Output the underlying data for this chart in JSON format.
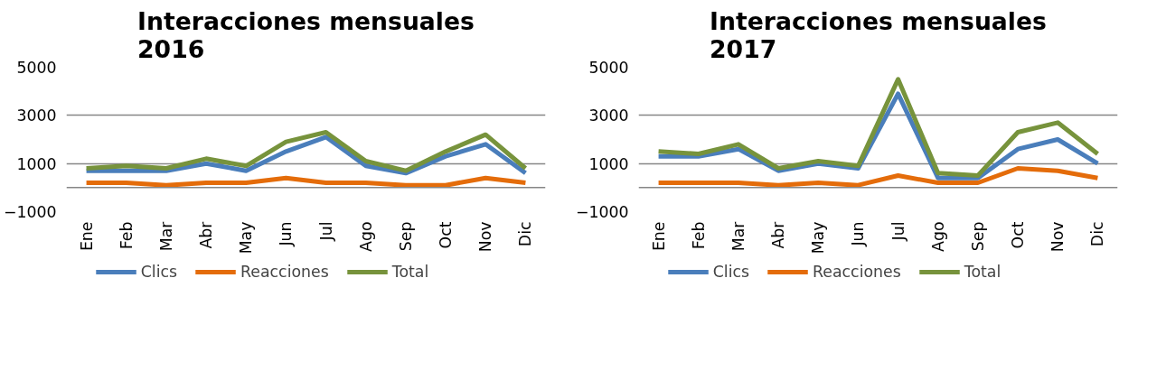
{
  "chart_data": [
    {
      "type": "line",
      "title": "Interacciones mensuales 2016",
      "categories": [
        "Ene",
        "Feb",
        "Mar",
        "Abr",
        "May",
        "Jun",
        "Jul",
        "Ago",
        "Sep",
        "Oct",
        "Nov",
        "Dic"
      ],
      "series": [
        {
          "name": "Clics",
          "color": "#4a7ebb",
          "values": [
            700,
            700,
            700,
            1000,
            700,
            1500,
            2100,
            900,
            600,
            1300,
            1800,
            600
          ]
        },
        {
          "name": "Reacciones",
          "color": "#e46c0a",
          "values": [
            200,
            200,
            100,
            200,
            200,
            400,
            200,
            200,
            100,
            100,
            400,
            200
          ]
        },
        {
          "name": "Total",
          "color": "#77933c",
          "values": [
            800,
            900,
            800,
            1200,
            900,
            1900,
            2300,
            1100,
            700,
            1500,
            2200,
            800
          ]
        }
      ],
      "ylim": [
        -1000,
        5000
      ],
      "yticks": [
        -1000,
        1000,
        3000,
        5000
      ],
      "grid": "y",
      "legend": "bottom",
      "marker": "none",
      "line_style": "solid",
      "ref_lines": [
        {
          "axis": "y",
          "value": 0,
          "label": null,
          "color": "#868686"
        }
      ]
    },
    {
      "type": "line",
      "title": "Interacciones mensuales 2017",
      "categories": [
        "Ene",
        "Feb",
        "Mar",
        "Abr",
        "May",
        "Jun",
        "Jul",
        "Ago",
        "Sep",
        "Oct",
        "Nov",
        "Dic"
      ],
      "series": [
        {
          "name": "Clics",
          "color": "#4a7ebb",
          "values": [
            1300,
            1300,
            1600,
            700,
            1000,
            800,
            3900,
            400,
            400,
            1600,
            2000,
            1000
          ]
        },
        {
          "name": "Reacciones",
          "color": "#e46c0a",
          "values": [
            200,
            200,
            200,
            100,
            200,
            100,
            500,
            200,
            200,
            800,
            700,
            400
          ]
        },
        {
          "name": "Total",
          "color": "#77933c",
          "values": [
            1500,
            1400,
            1800,
            800,
            1100,
            900,
            4500,
            600,
            500,
            2300,
            2700,
            1400
          ]
        }
      ],
      "ylim": [
        -1000,
        5000
      ],
      "yticks": [
        -1000,
        1000,
        3000,
        5000
      ],
      "grid": "y",
      "legend": "bottom",
      "marker": "none",
      "line_style": "solid",
      "ref_lines": [
        {
          "axis": "y",
          "value": 0,
          "label": null,
          "color": "#868686"
        }
      ]
    }
  ]
}
